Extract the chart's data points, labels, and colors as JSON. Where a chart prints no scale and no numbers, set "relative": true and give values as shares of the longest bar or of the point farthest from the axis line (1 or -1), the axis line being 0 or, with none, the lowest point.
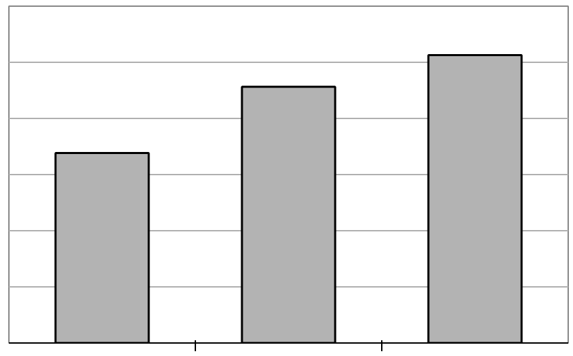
{
  "chart_data": {
    "type": "bar",
    "relative": true,
    "categories": [
      null,
      null,
      null
    ],
    "values": [
      0.66,
      0.89,
      1.0
    ],
    "color": "#b3b3b3",
    "grid": "y"
  }
}
